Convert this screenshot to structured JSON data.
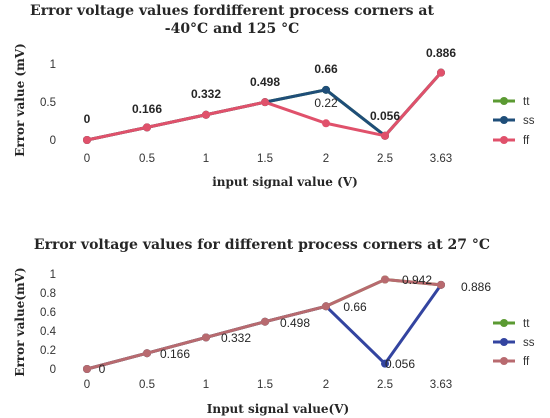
{
  "chart_data": [
    {
      "type": "line",
      "title_lines": [
        "Error voltage values fordifferent process corners at",
        "-40°C and 125 °C"
      ],
      "xlabel": "input signal value (V)",
      "ylabel": "Error value (mV)",
      "categories": [
        "0",
        "0.5",
        "1",
        "1.5",
        "2",
        "2.5",
        "3.63"
      ],
      "ylim": [
        0,
        1
      ],
      "yticks": [
        "0",
        "0.5",
        "1"
      ],
      "grid": false,
      "legend_position": "right",
      "series": [
        {
          "name": "tt",
          "color": "#5b9a32",
          "values": [
            0,
            0.166,
            0.332,
            0.498,
            0.66,
            0.056,
            0.886
          ]
        },
        {
          "name": "ss",
          "color": "#1f4e79",
          "values": [
            0,
            0.166,
            0.332,
            0.498,
            0.66,
            0.056,
            0.886
          ]
        },
        {
          "name": "ff",
          "color": "#e0516b",
          "values": [
            0,
            0.166,
            0.332,
            0.498,
            0.22,
            0.056,
            0.886
          ]
        }
      ],
      "data_labels": [
        "0",
        "0.166",
        "0.332",
        "0.498",
        "0.66",
        "0.056",
        "0.886",
        "0.22"
      ]
    },
    {
      "type": "line",
      "title_lines": [
        "Error voltage values for different process corners at 27 °C"
      ],
      "xlabel": "Input signal value(V)",
      "ylabel": "Error value(mV)",
      "categories": [
        "0",
        "0.5",
        "1",
        "1.5",
        "2",
        "2.5",
        "3.63"
      ],
      "ylim": [
        0,
        1
      ],
      "yticks": [
        "0",
        "0.2",
        "0.4",
        "0.6",
        "0.8",
        "1"
      ],
      "grid": false,
      "legend_position": "right",
      "series": [
        {
          "name": "tt",
          "color": "#5b9a32",
          "values": [
            0,
            0.166,
            0.332,
            0.498,
            0.66,
            0.942,
            0.886
          ]
        },
        {
          "name": "ss",
          "color": "#3344a0",
          "values": [
            0,
            0.166,
            0.332,
            0.498,
            0.66,
            0.056,
            0.886
          ]
        },
        {
          "name": "ff",
          "color": "#b86a6f",
          "values": [
            0,
            0.166,
            0.332,
            0.498,
            0.66,
            0.942,
            0.886
          ]
        }
      ],
      "data_labels": [
        "0",
        "0.166",
        "0.332",
        "0.498",
        "0.66",
        "0.942",
        "0.886",
        "0.056"
      ]
    }
  ]
}
